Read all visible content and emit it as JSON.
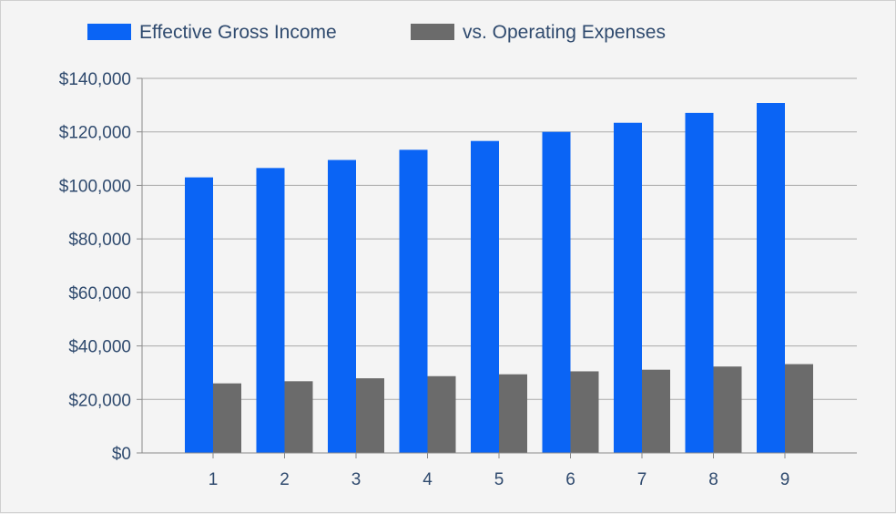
{
  "chart_data": {
    "type": "bar",
    "categories": [
      "1",
      "2",
      "3",
      "4",
      "5",
      "6",
      "7",
      "8",
      "9"
    ],
    "series": [
      {
        "name": "Effective Gross Income",
        "color": "#0a64f5",
        "values": [
          103000,
          106500,
          109500,
          113300,
          116600,
          120000,
          123400,
          127100,
          130800
        ]
      },
      {
        "name": "vs. Operating Expenses",
        "color": "#6b6b6b",
        "values": [
          26000,
          26800,
          27900,
          28700,
          29400,
          30500,
          31100,
          32300,
          33200
        ]
      }
    ],
    "ylim": [
      0,
      140000
    ],
    "yticks": [
      0,
      20000,
      40000,
      60000,
      80000,
      100000,
      120000,
      140000
    ],
    "ytick_labels": [
      "$0",
      "$20,000",
      "$40,000",
      "$60,000",
      "$80,000",
      "$100,000",
      "$120,000",
      "$140,000"
    ],
    "grid": true,
    "legend_position": "top-left"
  }
}
